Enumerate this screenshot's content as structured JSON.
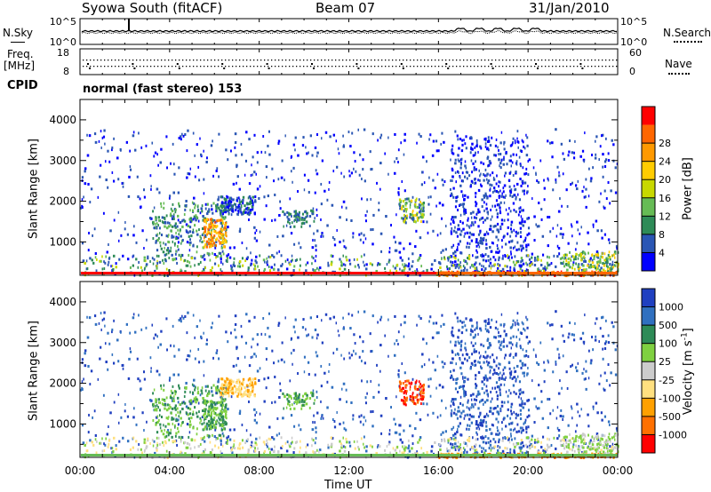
{
  "header": {
    "title": "Syowa South (fitACF)",
    "beam": "Beam 07",
    "date": "31/Jan/2010"
  },
  "side_labels": {
    "nsky": "N.Sky",
    "nsearch": "N.Search",
    "freq": "Freq.",
    "freq_unit": "[MHz]",
    "nave": "Nave",
    "cpid": "CPID",
    "cpid_value": "normal (fast stereo) 153"
  },
  "colors": {
    "power": [
      "#0000ff",
      "#2a56b4",
      "#2e8b57",
      "#66bb55",
      "#c8d800",
      "#ffcc00",
      "#ff9900",
      "#ff6600",
      "#ff0000"
    ],
    "velocity": [
      "#2040c0",
      "#3070c0",
      "#2e8b57",
      "#7fd040",
      "#cccccc",
      "#ffe080",
      "#ffa000",
      "#ff7000",
      "#ff0000"
    ]
  },
  "chart_data": [
    {
      "type": "line",
      "name": "noise-panel",
      "left_ticks": [
        "10^5",
        "10^0"
      ],
      "right_ticks": [
        "10^5",
        "10^0"
      ],
      "ylabel_left": "N.Sky",
      "ylabel_right": "N.Search"
    },
    {
      "type": "scatter",
      "name": "freq-nave-panel",
      "left_ticks": [
        "18",
        "8"
      ],
      "right_ticks": [
        "60",
        "0"
      ],
      "ylabel_left": "Freq. [MHz]",
      "ylabel_right": "Nave"
    },
    {
      "type": "heatmap",
      "name": "power-panel",
      "ylabel": "Slant Range [km]",
      "yticks": [
        1000,
        2000,
        3000,
        4000
      ],
      "ylim": [
        180,
        4500
      ],
      "colorbar_label": "Power [dB]",
      "colorbar_ticks": [
        "4",
        "8",
        "12",
        "16",
        "20",
        "24",
        "28"
      ]
    },
    {
      "type": "heatmap",
      "name": "velocity-panel",
      "ylabel": "Slant Range [km]",
      "yticks": [
        1000,
        2000,
        3000,
        4000
      ],
      "ylim": [
        180,
        4500
      ],
      "colorbar_label": "Velocity [m s-1]",
      "colorbar_ticks": [
        "1000",
        "500",
        "100",
        "25",
        "-25",
        "-100",
        "-500",
        "-1000"
      ]
    }
  ],
  "xaxis": {
    "label": "Time UT",
    "ticks": [
      "00:00",
      "04:00",
      "08:00",
      "12:00",
      "16:00",
      "20:00",
      "00:00"
    ],
    "range_hours": [
      0,
      24
    ]
  }
}
